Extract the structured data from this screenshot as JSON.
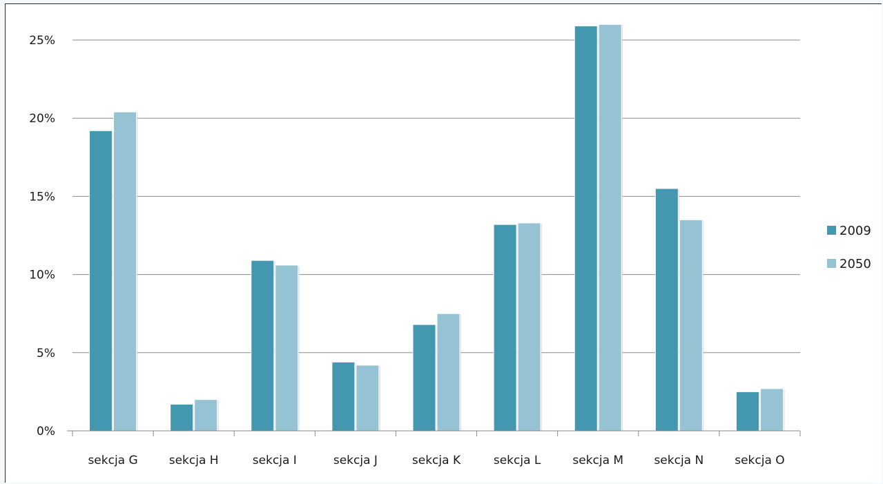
{
  "chart_data": {
    "type": "bar",
    "categories": [
      "sekcja G",
      "sekcja H",
      "sekcja I",
      "sekcja J",
      "sekcja K",
      "sekcja L",
      "sekcja M",
      "sekcja N",
      "sekcja O"
    ],
    "series": [
      {
        "name": "2009",
        "color": "#4397af",
        "values": [
          19.2,
          1.7,
          10.9,
          4.4,
          6.8,
          13.2,
          25.9,
          15.5,
          2.5
        ]
      },
      {
        "name": "2050",
        "color": "#95c3d4",
        "values": [
          20.4,
          2.0,
          10.6,
          4.2,
          7.5,
          13.3,
          26.0,
          13.5,
          2.7
        ]
      }
    ],
    "ylim": [
      0,
      25
    ],
    "yticks": [
      "0%",
      "5%",
      "10%",
      "15%",
      "20%",
      "25%"
    ],
    "ytick_values": [
      0,
      5,
      10,
      15,
      20,
      25
    ],
    "title": "",
    "xlabel": "",
    "ylabel": "",
    "grid": true,
    "legend_position": "right"
  }
}
